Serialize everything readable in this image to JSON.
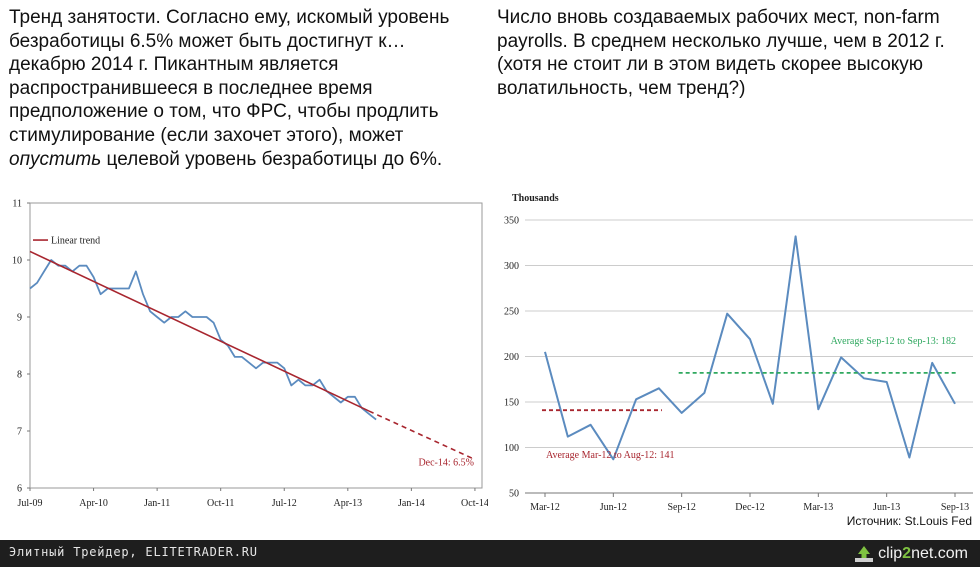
{
  "left_text": {
    "before": "Тренд занятости. Согласно ему, искомый уровень безработицы 6.5% может быть достигнут к… декабрю 2014 г. Пикантным является распространившееся в последнее время предположение о том, что ФРС, чтобы продлить стимулирование (если захочет этого), может ",
    "emphasis": "опустить",
    "after": " целевой уровень безработицы до 6%."
  },
  "right_text": "Число вновь создаваемых рабочих мест, non-farm payrolls. В среднем несколько лучше, чем в 2012 г. (хотя не стоит ли в этом видеть скорее высокую волатильность, чем тренд?)",
  "source": "Источник: St.Louis Fed",
  "footer": {
    "site": "Элитный Трейдер, ELITETRADER.RU",
    "brand": "clip2net.com",
    "brand_icon": "arrow-up-icon"
  },
  "colors": {
    "series": "#5b8bbf",
    "trend": "#a8262f",
    "average_green": "#2fa85f",
    "gridline": "#cccccc"
  },
  "chart_data": [
    {
      "type": "line",
      "title": "",
      "ylim": [
        6,
        11
      ],
      "yticks": [
        6,
        7,
        8,
        9,
        10,
        11
      ],
      "xlim": [
        0,
        64
      ],
      "xticks": [
        {
          "label": "Jul-09",
          "x": 0
        },
        {
          "label": "Apr-10",
          "x": 9
        },
        {
          "label": "Jan-11",
          "x": 18
        },
        {
          "label": "Oct-11",
          "x": 27
        },
        {
          "label": "Jul-12",
          "x": 36
        },
        {
          "label": "Apr-13",
          "x": 45
        },
        {
          "label": "Jan-14",
          "x": 54
        },
        {
          "label": "Oct-14",
          "x": 63
        }
      ],
      "series": [
        {
          "x": [
            0,
            1,
            2,
            3,
            4,
            5,
            6,
            7,
            8,
            9,
            10,
            11,
            12,
            13,
            14,
            15,
            16,
            17,
            18,
            19,
            20,
            21,
            22,
            23,
            24,
            25,
            26,
            27,
            28,
            29,
            30,
            31,
            32,
            33,
            34,
            35,
            36,
            37,
            38,
            39,
            40,
            41,
            42,
            43,
            44,
            45,
            46,
            47,
            48,
            49
          ],
          "values": [
            9.5,
            9.6,
            9.8,
            10.0,
            9.9,
            9.9,
            9.8,
            9.9,
            9.9,
            9.7,
            9.4,
            9.5,
            9.5,
            9.5,
            9.5,
            9.8,
            9.4,
            9.1,
            9.0,
            8.9,
            9.0,
            9.0,
            9.1,
            9.0,
            9.0,
            9.0,
            8.9,
            8.6,
            8.5,
            8.3,
            8.3,
            8.2,
            8.1,
            8.2,
            8.2,
            8.2,
            8.1,
            7.8,
            7.9,
            7.8,
            7.8,
            7.9,
            7.7,
            7.6,
            7.5,
            7.6,
            7.6,
            7.4,
            7.3,
            7.2
          ]
        }
      ],
      "trend": {
        "name": "Linear trend",
        "start": [
          0,
          10.15
        ],
        "end": [
          48,
          7.35
        ],
        "projection_end": [
          63,
          6.5
        ],
        "annotation": "Dec-14: 6.5%"
      }
    },
    {
      "type": "line",
      "ylabel": "Thousands",
      "ylim": [
        50,
        350
      ],
      "yticks": [
        50,
        100,
        150,
        200,
        250,
        300,
        350
      ],
      "xticks": [
        "Mar-12",
        "Jun-12",
        "Sep-12",
        "Dec-12",
        "Mar-13",
        "Jun-13",
        "Sep-13"
      ],
      "months": [
        "Mar-12",
        "Apr-12",
        "May-12",
        "Jun-12",
        "Jul-12",
        "Aug-12",
        "Sep-12",
        "Oct-12",
        "Nov-12",
        "Dec-12",
        "Jan-13",
        "Feb-13",
        "Mar-13",
        "Apr-13",
        "May-13",
        "Jun-13",
        "Jul-13",
        "Aug-13",
        "Sep-13"
      ],
      "values": [
        205,
        112,
        125,
        87,
        153,
        165,
        138,
        160,
        247,
        219,
        148,
        332,
        142,
        199,
        176,
        172,
        89,
        193,
        148
      ],
      "averages": [
        {
          "label": "Average Mar-12 to Aug-12: 141",
          "value": 141,
          "from": 0,
          "to": 5,
          "color": "#a8262f"
        },
        {
          "label": "Average Sep-12 to Sep-13: 182",
          "value": 182,
          "from": 6,
          "to": 18,
          "color": "#2fa85f"
        }
      ]
    }
  ]
}
